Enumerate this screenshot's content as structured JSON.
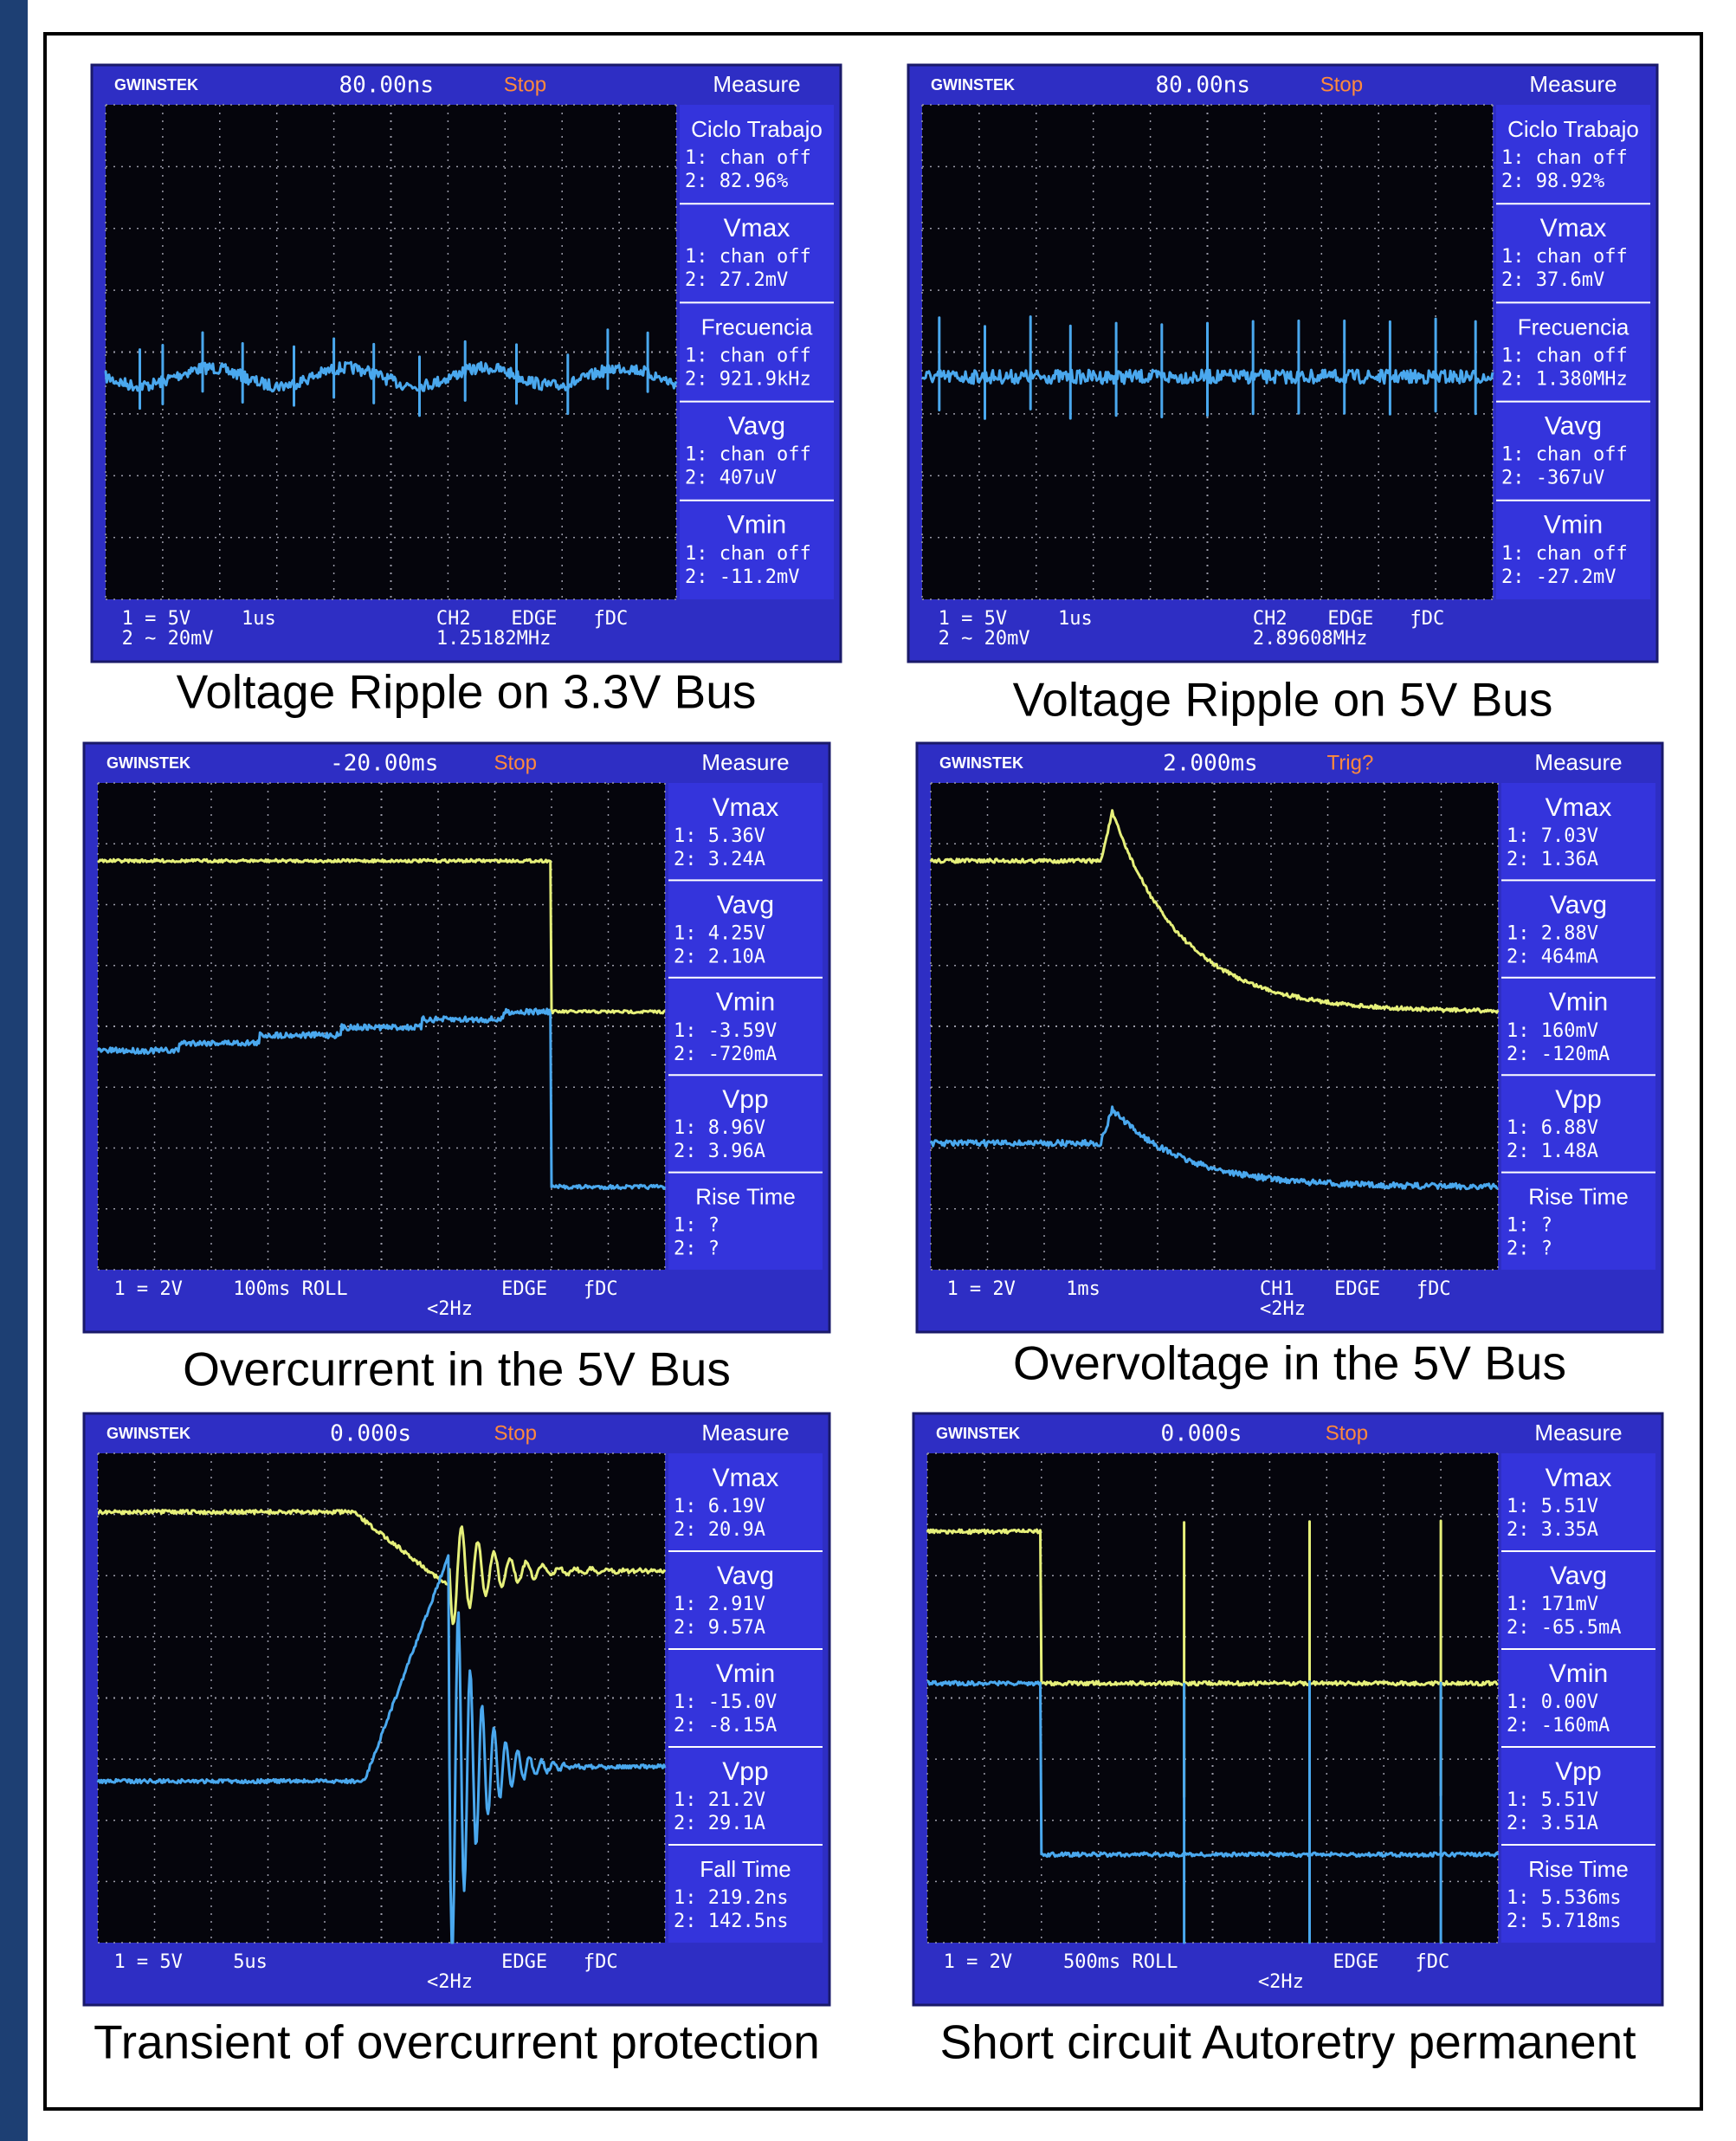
{
  "panels": [
    {
      "caption": "Voltage Ripple on 3.3V Bus",
      "header": {
        "brand": "GWINSTEK",
        "trigger": "80.00ns",
        "status": "Stop",
        "measure": "Measure"
      },
      "measurements": [
        {
          "title": "Ciclo Trabajo",
          "lines": [
            "1: chan off",
            "2: 82.96%"
          ]
        },
        {
          "title": "Vmax",
          "lines": [
            "1: chan off",
            "2: 27.2mV"
          ]
        },
        {
          "title": "Frecuencia",
          "lines": [
            "1: chan off",
            "2: 921.9kHz"
          ]
        },
        {
          "title": "Vavg",
          "lines": [
            "1: chan off",
            "2: 407uV"
          ]
        },
        {
          "title": "Vmin",
          "lines": [
            "1: chan off",
            "2: -11.2mV"
          ]
        }
      ],
      "footer": {
        "ch1": "1 = 5V",
        "ch2": "2 ~ 20mV",
        "time": "1us",
        "source": "CH2",
        "trigger": "EDGE",
        "coupling": "ƒDC",
        "freq": "1.25182MHz"
      }
    },
    {
      "caption": "Voltage Ripple on 5V Bus",
      "header": {
        "brand": "GWINSTEK",
        "trigger": "80.00ns",
        "status": "Stop",
        "measure": "Measure"
      },
      "measurements": [
        {
          "title": "Ciclo Trabajo",
          "lines": [
            "1: chan off",
            "2: 98.92%"
          ]
        },
        {
          "title": "Vmax",
          "lines": [
            "1: chan off",
            "2: 37.6mV"
          ]
        },
        {
          "title": "Frecuencia",
          "lines": [
            "1: chan off",
            "2: 1.380MHz"
          ]
        },
        {
          "title": "Vavg",
          "lines": [
            "1: chan off",
            "2: -367uV"
          ]
        },
        {
          "title": "Vmin",
          "lines": [
            "1: chan off",
            "2: -27.2mV"
          ]
        }
      ],
      "footer": {
        "ch1": "1 = 5V",
        "ch2": "2 ~ 20mV",
        "time": "1us",
        "source": "CH2",
        "trigger": "EDGE",
        "coupling": "ƒDC",
        "freq": "2.89608MHz"
      }
    },
    {
      "caption": "Overcurrent in the 5V Bus",
      "header": {
        "brand": "GWINSTEK",
        "trigger": "-20.00ms",
        "status": "Stop",
        "measure": "Measure"
      },
      "measurements": [
        {
          "title": "Vmax",
          "lines": [
            "1: 5.36V",
            "2: 3.24A"
          ]
        },
        {
          "title": "Vavg",
          "lines": [
            "1: 4.25V",
            "2: 2.10A"
          ]
        },
        {
          "title": "Vmin",
          "lines": [
            "1: -3.59V",
            "2: -720mA"
          ]
        },
        {
          "title": "Vpp",
          "lines": [
            "1: 8.96V",
            "2: 3.96A"
          ]
        },
        {
          "title": "Rise Time",
          "lines": [
            "1: ?",
            "2: ?"
          ]
        }
      ],
      "footer": {
        "ch1": "1 = 2V",
        "time": "100ms ROLL",
        "trigger": "EDGE",
        "coupling": "ƒDC",
        "freq": "<2Hz"
      }
    },
    {
      "caption": "Overvoltage in the 5V Bus",
      "header": {
        "brand": "GWINSTEK",
        "trigger": "2.000ms",
        "status": "Trig?",
        "measure": "Measure"
      },
      "measurements": [
        {
          "title": "Vmax",
          "lines": [
            "1: 7.03V",
            "2: 1.36A"
          ]
        },
        {
          "title": "Vavg",
          "lines": [
            "1: 2.88V",
            "2: 464mA"
          ]
        },
        {
          "title": "Vmin",
          "lines": [
            "1: 160mV",
            "2: -120mA"
          ]
        },
        {
          "title": "Vpp",
          "lines": [
            "1: 6.88V",
            "2: 1.48A"
          ]
        },
        {
          "title": "Rise Time",
          "lines": [
            "1: ?",
            "2: ?"
          ]
        }
      ],
      "footer": {
        "ch1": "1 = 2V",
        "time": "1ms",
        "source": "CH1",
        "trigger": "EDGE",
        "coupling": "ƒDC",
        "freq": "<2Hz"
      }
    },
    {
      "caption": "Transient of overcurrent protection",
      "header": {
        "brand": "GWINSTEK",
        "trigger": "0.000s",
        "status": "Stop",
        "measure": "Measure"
      },
      "measurements": [
        {
          "title": "Vmax",
          "lines": [
            "1: 6.19V",
            "2: 20.9A"
          ]
        },
        {
          "title": "Vavg",
          "lines": [
            "1: 2.91V",
            "2: 9.57A"
          ]
        },
        {
          "title": "Vmin",
          "lines": [
            "1: -15.0V",
            "2: -8.15A"
          ]
        },
        {
          "title": "Vpp",
          "lines": [
            "1: 21.2V",
            "2: 29.1A"
          ]
        },
        {
          "title": "Fall Time",
          "lines": [
            "1: 219.2ns",
            "2: 142.5ns"
          ]
        }
      ],
      "footer": {
        "ch1": "1 = 5V",
        "time": "5us",
        "trigger": "EDGE",
        "coupling": "ƒDC",
        "freq": "<2Hz"
      }
    },
    {
      "caption": "Short circuit Autoretry permanent",
      "header": {
        "brand": "GWINSTEK",
        "trigger": "0.000s",
        "status": "Stop",
        "measure": "Measure"
      },
      "measurements": [
        {
          "title": "Vmax",
          "lines": [
            "1: 5.51V",
            "2: 3.35A"
          ]
        },
        {
          "title": "Vavg",
          "lines": [
            "1: 171mV",
            "2: -65.5mA"
          ]
        },
        {
          "title": "Vmin",
          "lines": [
            "1: 0.00V",
            "2: -160mA"
          ]
        },
        {
          "title": "Vpp",
          "lines": [
            "1: 5.51V",
            "2: 3.51A"
          ]
        },
        {
          "title": "Rise Time",
          "lines": [
            "1: 5.536ms",
            "2: 5.718ms"
          ]
        }
      ],
      "footer": {
        "ch1": "1 = 2V",
        "time": "500ms ROLL",
        "trigger": "EDGE",
        "coupling": "ƒDC",
        "freq": "<2Hz"
      }
    }
  ]
}
